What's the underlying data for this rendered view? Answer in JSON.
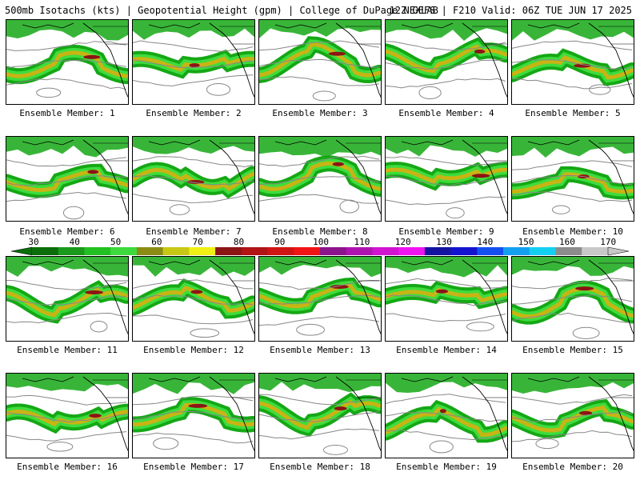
{
  "header": {
    "left": "500mb Isotachs (kts) | Geopotential Height (gpm) | College of DuPage NEXLAB",
    "right": "12Z GEFS | F210 Valid: 06Z TUE JUN 17 2025"
  },
  "panels": [
    {
      "label": "Ensemble Member: 1"
    },
    {
      "label": "Ensemble Member: 2"
    },
    {
      "label": "Ensemble Member: 3"
    },
    {
      "label": "Ensemble Member: 4"
    },
    {
      "label": "Ensemble Member: 5"
    },
    {
      "label": "Ensemble Member: 6"
    },
    {
      "label": "Ensemble Member: 7"
    },
    {
      "label": "Ensemble Member: 8"
    },
    {
      "label": "Ensemble Member: 9"
    },
    {
      "label": "Ensemble Member: 10"
    },
    {
      "label": "Ensemble Member: 11"
    },
    {
      "label": "Ensemble Member: 12"
    },
    {
      "label": "Ensemble Member: 13"
    },
    {
      "label": "Ensemble Member: 14"
    },
    {
      "label": "Ensemble Member: 15"
    },
    {
      "label": "Ensemble Member: 16"
    },
    {
      "label": "Ensemble Member: 17"
    },
    {
      "label": "Ensemble Member: 18"
    },
    {
      "label": "Ensemble Member: 19"
    },
    {
      "label": "Ensemble Member: 20"
    }
  ],
  "colorbar": {
    "labels": [
      "30",
      "40",
      "50",
      "60",
      "70",
      "80",
      "90",
      "100",
      "110",
      "120",
      "130",
      "140",
      "150",
      "160",
      "170"
    ],
    "colors": [
      "#0a6e0a",
      "#1a9a1a",
      "#22c022",
      "#3ed93e",
      "#8c8c14",
      "#c8c814",
      "#f0f014",
      "#8c1414",
      "#b01414",
      "#d01414",
      "#f01414",
      "#8c148c",
      "#b014b0",
      "#d014d0",
      "#f014f0",
      "#1414a0",
      "#1414d0",
      "#1450f0",
      "#14a0f0",
      "#14d0f0",
      "#8c8c8c",
      "#c8c8c8"
    ]
  },
  "map_colors": {
    "jet_outer": "#15a815",
    "jet_mid": "#3edc3e",
    "jet_core": "#c8b414",
    "jet_peak": "#8c1414",
    "height_contour": "#888888",
    "coast": "#000000"
  }
}
